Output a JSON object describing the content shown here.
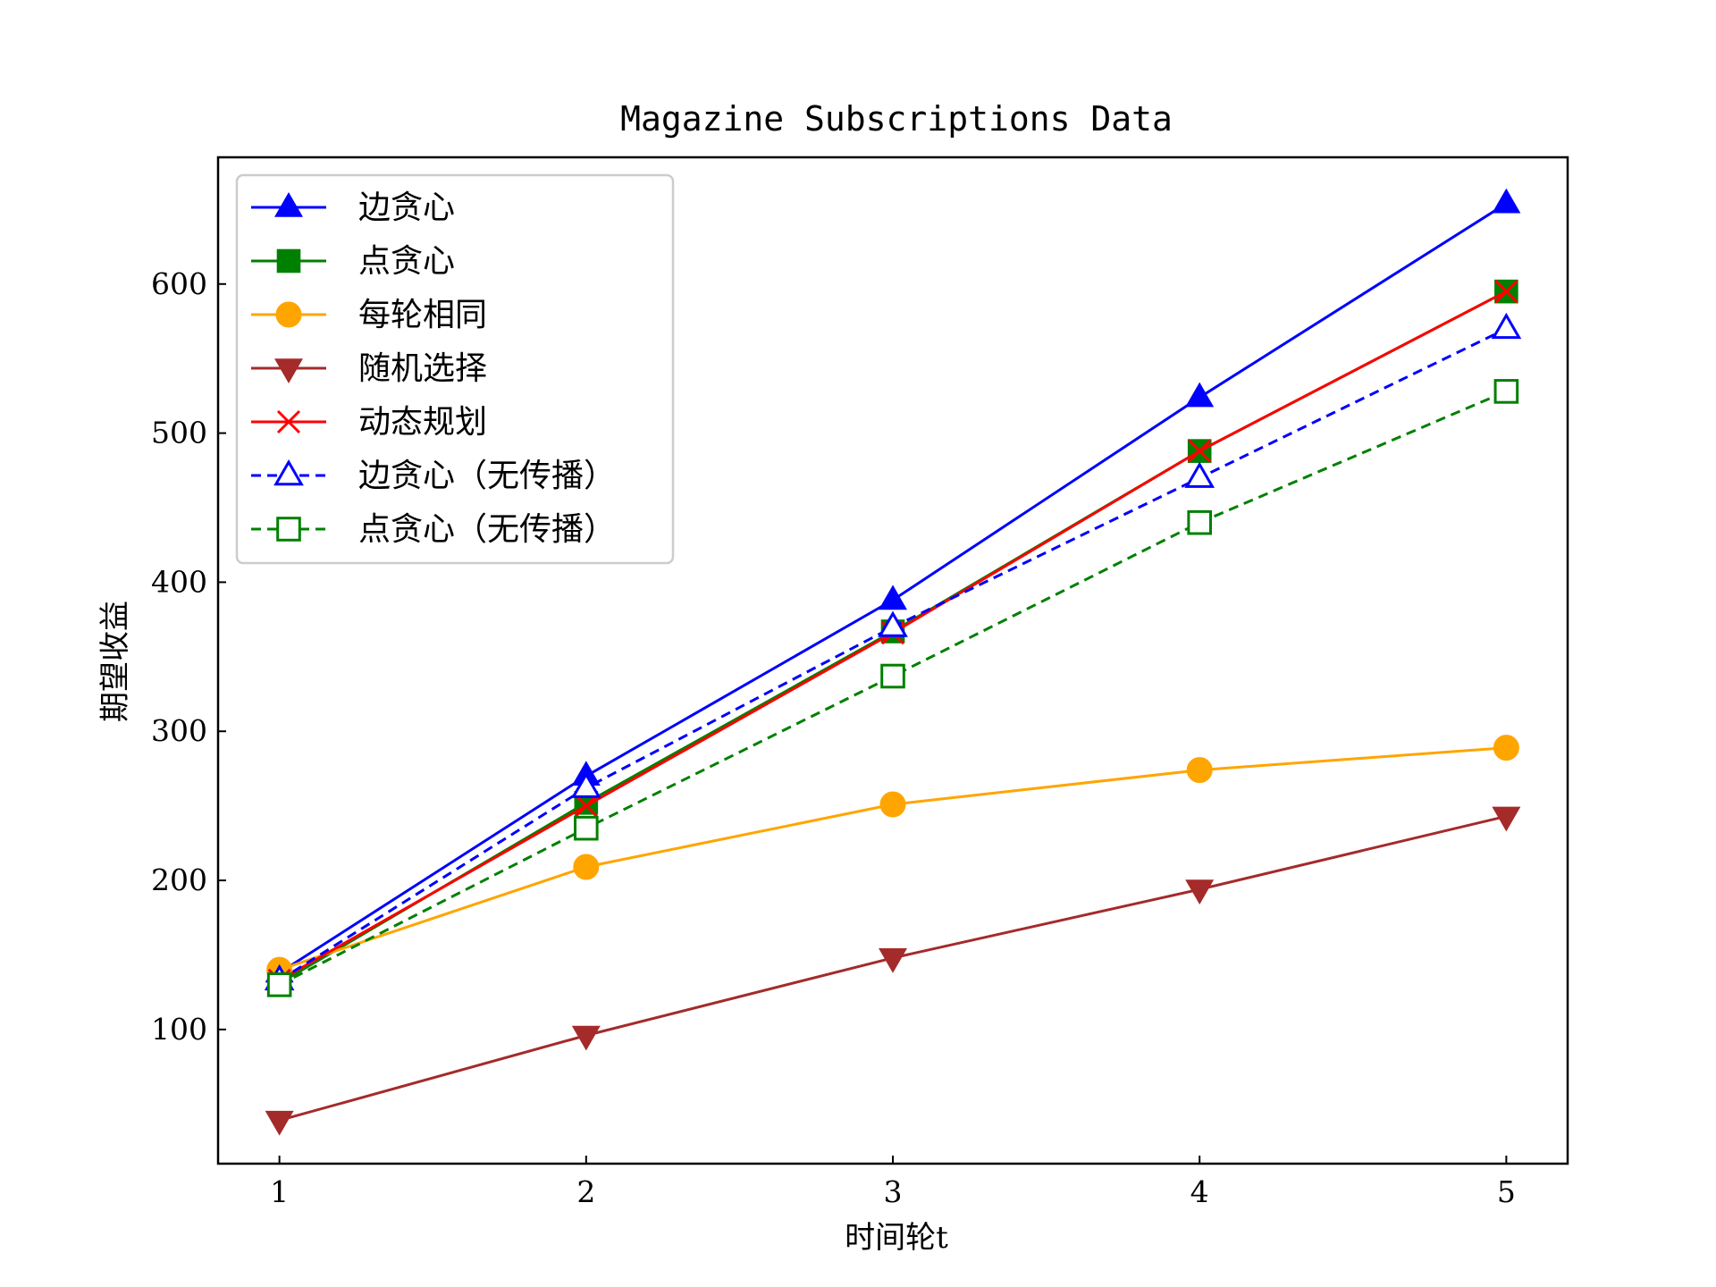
{
  "chart_data": {
    "type": "line",
    "title": "Magazine Subscriptions Data",
    "xlabel": "时间轮t",
    "ylabel": "期望收益",
    "x": [
      1,
      2,
      3,
      4,
      5
    ],
    "xlim": [
      0.8,
      5.2
    ],
    "ylim": [
      10,
      685
    ],
    "xticks": [
      1,
      2,
      3,
      4,
      5
    ],
    "yticks": [
      100,
      200,
      300,
      400,
      500,
      600
    ],
    "grid": false,
    "legend_position": "upper-left",
    "series": [
      {
        "name": "边贪心",
        "values": [
          138,
          270,
          388,
          524,
          654
        ],
        "color": "#0000ff",
        "marker": "triangle-up",
        "filled": true,
        "linestyle": "solid"
      },
      {
        "name": "点贪心",
        "values": [
          131,
          252,
          367,
          488,
          595
        ],
        "color": "#008000",
        "marker": "square",
        "filled": true,
        "linestyle": "solid"
      },
      {
        "name": "每轮相同",
        "values": [
          140,
          209,
          251,
          274,
          289
        ],
        "color": "#ffa500",
        "marker": "circle",
        "filled": true,
        "linestyle": "solid"
      },
      {
        "name": "随机选择",
        "values": [
          39,
          96,
          148,
          194,
          243
        ],
        "color": "#a52a2a",
        "marker": "triangle-down",
        "filled": true,
        "linestyle": "solid"
      },
      {
        "name": "动态规划",
        "values": [
          133,
          250,
          366,
          488,
          595
        ],
        "color": "#ff0000",
        "marker": "x",
        "filled": true,
        "linestyle": "solid"
      },
      {
        "name": "边贪心（无传播）",
        "values": [
          133,
          262,
          370,
          470,
          570
        ],
        "color": "#0000ff",
        "marker": "triangle-up",
        "filled": false,
        "linestyle": "dashed"
      },
      {
        "name": "点贪心（无传播）",
        "values": [
          130,
          235,
          337,
          440,
          528
        ],
        "color": "#008000",
        "marker": "square",
        "filled": false,
        "linestyle": "dashed"
      }
    ]
  }
}
